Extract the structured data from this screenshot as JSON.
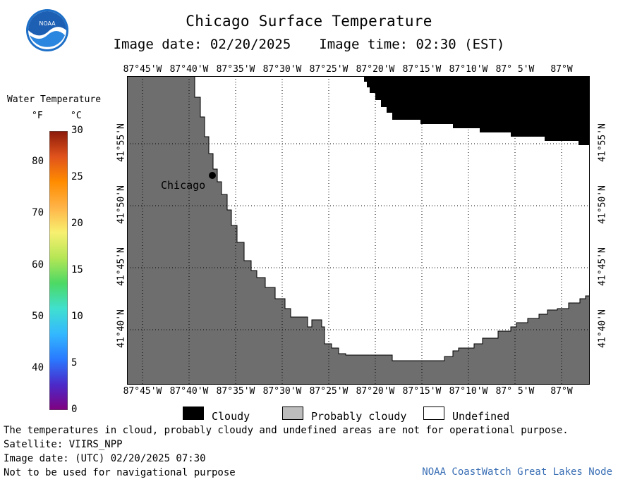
{
  "header": {
    "title": "Chicago Surface Temperature",
    "image_date": "Image date: 02/20/2025",
    "image_time": "Image time: 02:30 (EST)",
    "logo_text": "NOAA"
  },
  "legend": {
    "title": "Water Temperature",
    "unit_f": "°F",
    "unit_c": "°C",
    "fahrenheit_ticks": [
      "80",
      "70",
      "60",
      "50",
      "40"
    ],
    "celsius_ticks": [
      "30",
      "25",
      "20",
      "15",
      "10",
      "5",
      "0"
    ],
    "range_c": [
      0,
      30
    ],
    "colors": [
      "#800080",
      "#4b2ac9",
      "#2979ff",
      "#33b8ff",
      "#40e0d0",
      "#4cd964",
      "#b5e655",
      "#f8f070",
      "#ffb347",
      "#ff8c00",
      "#e0521c",
      "#8b1a0a"
    ]
  },
  "map": {
    "lon_labels": [
      "87°45'W",
      "87°40'W",
      "87°35'W",
      "87°30'W",
      "87°25'W",
      "87°20'W",
      "87°15'W",
      "87°10'W",
      "87° 5'W",
      "87°W"
    ],
    "lat_labels": [
      "41°55'N",
      "41°50'N",
      "41°45'N",
      "41°40'N"
    ],
    "city": "Chicago",
    "colors": {
      "land": "#6e6e6e",
      "cloudy": "#000000",
      "probably_cloudy": "#bdbdbd",
      "undefined": "#ffffff"
    }
  },
  "key": {
    "cloudy": "Cloudy",
    "probably_cloudy": "Probably cloudy",
    "undefined": "Undefined"
  },
  "footer": {
    "disclaimer": "The temperatures in cloud, probably cloudy and undefined areas are not for operational purpose.",
    "satellite": "Satellite: VIIRS_NPP",
    "utc_date": "Image date: (UTC) 02/20/2025  07:30",
    "nav_warning": "Not to be used for navigational purpose",
    "credit": "NOAA CoastWatch Great Lakes Node"
  }
}
